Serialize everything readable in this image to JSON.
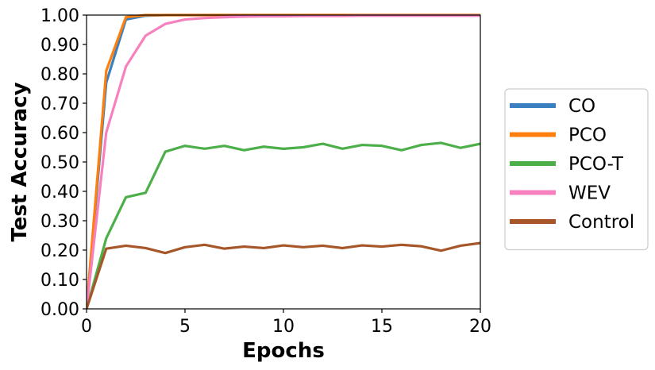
{
  "chart_data": {
    "type": "line",
    "title": "",
    "xlabel": "Epochs",
    "ylabel": "Test Accuracy",
    "xlim": [
      0,
      20
    ],
    "ylim": [
      0,
      1
    ],
    "xticks": [
      0,
      5,
      10,
      15,
      20
    ],
    "xtick_labels": [
      "0",
      "5",
      "10",
      "15",
      "20"
    ],
    "yticks": [
      0,
      0.1,
      0.2,
      0.3,
      0.4,
      0.5,
      0.6,
      0.7,
      0.8,
      0.9,
      1.0
    ],
    "ytick_labels": [
      "0.00",
      "0.10",
      "0.20",
      "0.30",
      "0.40",
      "0.50",
      "0.60",
      "0.70",
      "0.80",
      "0.90",
      "1.00"
    ],
    "grid": false,
    "legend_position": "outside-right",
    "x": [
      0,
      1,
      2,
      3,
      4,
      5,
      6,
      7,
      8,
      9,
      10,
      11,
      12,
      13,
      14,
      15,
      16,
      17,
      18,
      19,
      20
    ],
    "series": [
      {
        "name": "CO",
        "color": "#3a7fbf",
        "values": [
          0.0,
          0.77,
          0.985,
          0.998,
          1.0,
          1.0,
          1.0,
          1.0,
          1.0,
          1.0,
          1.0,
          1.0,
          1.0,
          1.0,
          1.0,
          1.0,
          1.0,
          1.0,
          1.0,
          1.0,
          1.0
        ]
      },
      {
        "name": "PCO",
        "color": "#ff7f0e",
        "values": [
          0.0,
          0.81,
          0.993,
          1.0,
          1.0,
          1.0,
          1.0,
          1.0,
          1.0,
          1.0,
          1.0,
          1.0,
          1.0,
          1.0,
          1.0,
          1.0,
          1.0,
          1.0,
          1.0,
          1.0,
          1.0
        ]
      },
      {
        "name": "PCO-T",
        "color": "#4daf4a",
        "values": [
          0.0,
          0.24,
          0.38,
          0.395,
          0.535,
          0.555,
          0.545,
          0.555,
          0.54,
          0.552,
          0.545,
          0.55,
          0.562,
          0.545,
          0.558,
          0.555,
          0.54,
          0.558,
          0.565,
          0.548,
          0.562
        ]
      },
      {
        "name": "WEV",
        "color": "#f781bf",
        "values": [
          0.0,
          0.6,
          0.825,
          0.93,
          0.97,
          0.985,
          0.99,
          0.993,
          0.995,
          0.996,
          0.996,
          0.997,
          0.997,
          0.997,
          0.998,
          0.998,
          0.998,
          0.998,
          0.998,
          0.998,
          0.998
        ]
      },
      {
        "name": "Control",
        "color": "#a65628",
        "values": [
          0.0,
          0.205,
          0.215,
          0.207,
          0.19,
          0.21,
          0.218,
          0.205,
          0.212,
          0.207,
          0.216,
          0.21,
          0.215,
          0.207,
          0.216,
          0.212,
          0.218,
          0.213,
          0.198,
          0.215,
          0.224
        ]
      }
    ]
  }
}
